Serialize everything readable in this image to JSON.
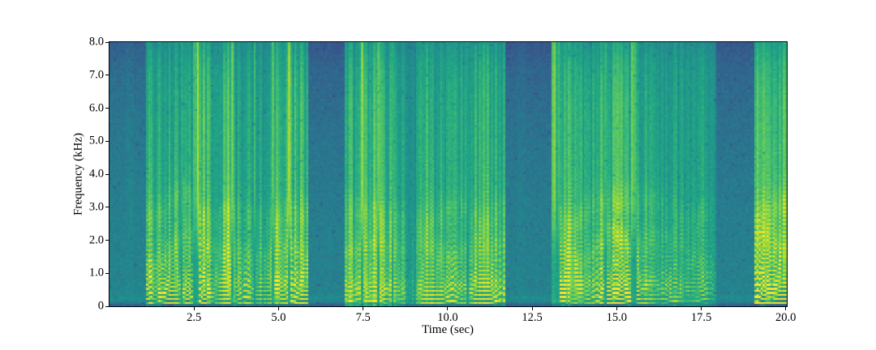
{
  "chart_data": {
    "type": "heatmap",
    "subtype": "spectrogram",
    "title": "",
    "xlabel": "Time (sec)",
    "ylabel": "Frequency (kHz)",
    "xlim": [
      0.0,
      20.03
    ],
    "ylim": [
      0.0,
      8.0
    ],
    "x_ticks": [
      2.5,
      5.0,
      7.5,
      10.0,
      12.5,
      15.0,
      17.5,
      20.0
    ],
    "x_tick_labels": [
      "2.5",
      "5.0",
      "7.5",
      "10.0",
      "12.5",
      "15.0",
      "17.5",
      "20.0"
    ],
    "y_ticks": [
      0,
      1,
      2,
      3,
      4,
      5,
      6,
      7,
      8
    ],
    "y_tick_labels": [
      "0",
      "1.0",
      "2.0",
      "3.0",
      "4.0",
      "5.0",
      "6.0",
      "7.0",
      "8.0"
    ],
    "grid": false,
    "legend": false,
    "colormap": "viridis",
    "colormap_stops": [
      [
        68,
        1,
        84
      ],
      [
        72,
        35,
        116
      ],
      [
        64,
        67,
        135
      ],
      [
        52,
        94,
        141
      ],
      [
        41,
        120,
        142
      ],
      [
        32,
        144,
        140
      ],
      [
        34,
        167,
        132
      ],
      [
        68,
        190,
        112
      ],
      [
        122,
        209,
        81
      ],
      [
        189,
        222,
        38
      ],
      [
        253,
        231,
        37
      ]
    ],
    "background_color": "#ffffff",
    "axis_color": "#000000",
    "speech_segments": [
      {
        "start": 1.08,
        "end": 5.87,
        "level": 1.0,
        "onset_burst": true,
        "comb": 1.0
      },
      {
        "start": 6.97,
        "end": 11.72,
        "level": 0.9,
        "onset_burst": false,
        "comb": 0.76
      },
      {
        "start": 13.1,
        "end": 16.62,
        "level": 1.05,
        "onset_burst": true,
        "comb": 1.05
      },
      {
        "start": 16.62,
        "end": 17.95,
        "level": 0.68,
        "onset_burst": false,
        "comb": 0.8,
        "fade_out": 0.5
      },
      {
        "start": 19.08,
        "end": 20.03,
        "level": 1.0,
        "onset_burst": true,
        "comb": 1.0
      }
    ],
    "silence_intervals": [
      [
        0.0,
        1.08
      ],
      [
        5.87,
        6.97
      ],
      [
        11.72,
        13.1
      ],
      [
        17.95,
        19.08
      ]
    ]
  }
}
